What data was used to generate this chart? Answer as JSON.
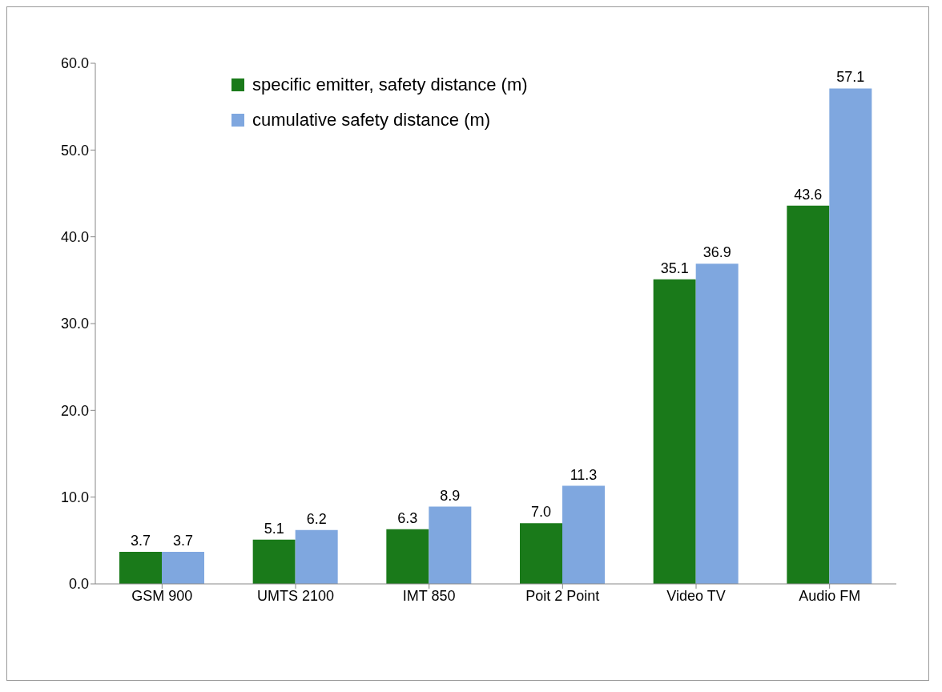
{
  "chart_data": {
    "type": "bar",
    "categories": [
      "GSM 900",
      "UMTS 2100",
      "IMT 850",
      "Poit 2 Point",
      "Video TV",
      "Audio FM"
    ],
    "series": [
      {
        "name": "specific emitter, safety distance (m)",
        "color": "#1a7a1a",
        "values": [
          3.7,
          5.1,
          6.3,
          7.0,
          35.1,
          43.6
        ],
        "value_labels": [
          "3.7",
          "5.1",
          "6.3",
          "7.0",
          "35.1",
          "43.6"
        ]
      },
      {
        "name": "cumulative safety distance (m)",
        "color": "#7fa7df",
        "values": [
          3.7,
          6.2,
          8.9,
          11.3,
          36.9,
          57.1
        ],
        "value_labels": [
          "3.7",
          "6.2",
          "8.9",
          "11.3",
          "36.9",
          "57.1"
        ]
      }
    ],
    "ylim": [
      0,
      60
    ],
    "yticks": [
      {
        "value": 0,
        "label": "0.0"
      },
      {
        "value": 10,
        "label": "10.0"
      },
      {
        "value": 20,
        "label": "20.0"
      },
      {
        "value": 30,
        "label": "30.0"
      },
      {
        "value": 40,
        "label": "40.0"
      },
      {
        "value": 50,
        "label": "50.0"
      },
      {
        "value": 60,
        "label": "60.0"
      }
    ],
    "grid": false,
    "legend": "top left"
  }
}
